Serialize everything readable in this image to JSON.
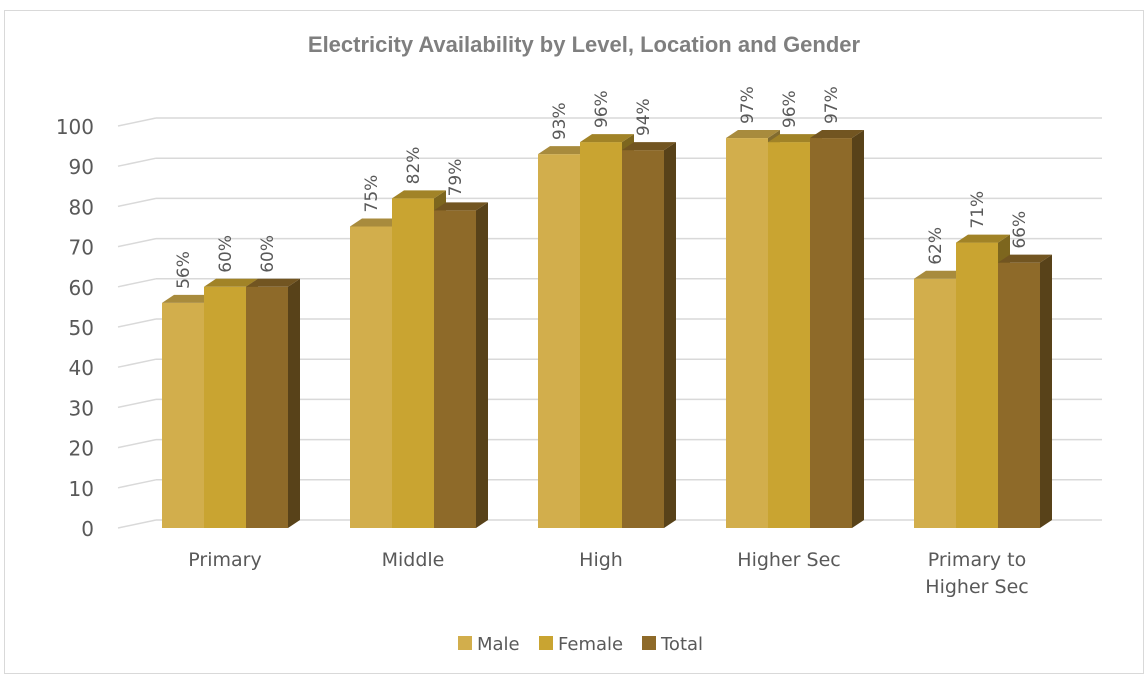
{
  "chart_data": {
    "type": "bar",
    "title": "Electricity Availability by Level, Location and Gender",
    "categories": [
      "Primary",
      "Middle",
      "High",
      "Higher Sec",
      "Primary to Higher Sec"
    ],
    "category_lines": [
      [
        "Primary"
      ],
      [
        "Middle"
      ],
      [
        "High"
      ],
      [
        "Higher Sec"
      ],
      [
        "Primary to",
        "Higher Sec"
      ]
    ],
    "series": [
      {
        "name": "Male",
        "values": [
          56,
          75,
          93,
          97,
          62
        ],
        "labels": [
          "56%",
          "75%",
          "93%",
          "97%",
          "62%"
        ],
        "color": "#d2ae4c"
      },
      {
        "name": "Female",
        "values": [
          60,
          82,
          96,
          96,
          71
        ],
        "labels": [
          "60%",
          "82%",
          "96%",
          "96%",
          "71%"
        ],
        "color": "#c9a431"
      },
      {
        "name": "Total",
        "values": [
          60,
          79,
          94,
          97,
          66
        ],
        "labels": [
          "60%",
          "79%",
          "94%",
          "97%",
          "66%"
        ],
        "color": "#8e6a29"
      }
    ],
    "yticks": [
      "0",
      "10",
      "20",
      "30",
      "40",
      "50",
      "60",
      "70",
      "80",
      "90",
      "100"
    ],
    "ylim": [
      0,
      100
    ],
    "grid": true,
    "legend_position": "bottom",
    "style": "3d-clustered-column"
  }
}
